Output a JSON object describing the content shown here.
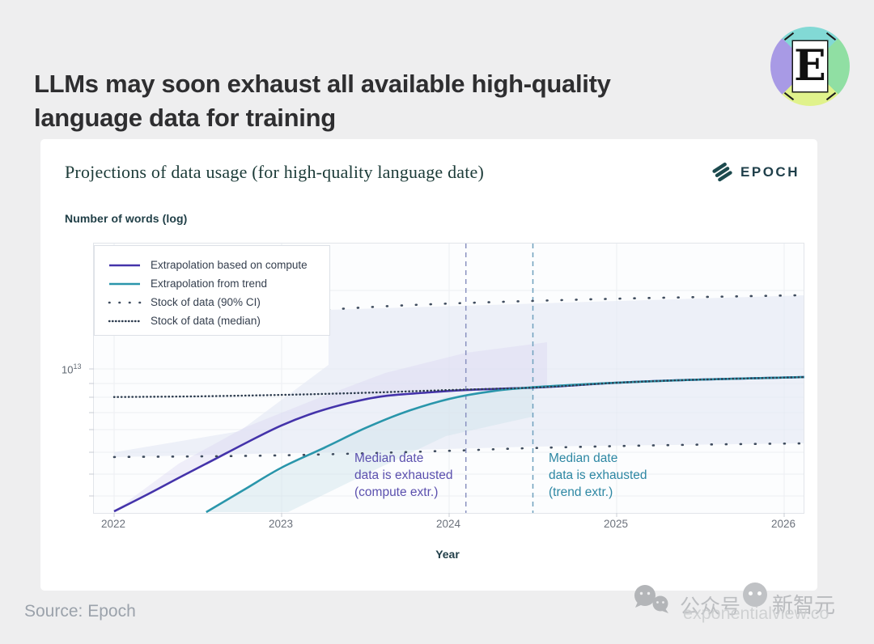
{
  "header": {
    "title_line1": "LLMs may soon exhaust all available high-quality",
    "title_line2": "language data for training",
    "logo_letter": "E"
  },
  "card": {
    "title": "Projections of data usage (for high-quality language date)",
    "brand": "EPOCH",
    "ylabel": "Number of words (log)",
    "xlabel": "Year",
    "ytick_base": "10",
    "ytick_exp": "13"
  },
  "legend": {
    "items": [
      {
        "label": "Extrapolation based on compute",
        "style": "solid",
        "color": "#4433aa"
      },
      {
        "label": "Extrapolation from trend",
        "style": "solid",
        "color": "#2a96ab"
      },
      {
        "label": "Stock of data (90% CI)",
        "style": "dot-sparse",
        "color": "#3f4c5e"
      },
      {
        "label": "Stock of data (median)",
        "style": "dot-dense",
        "color": "#2e3d4f"
      }
    ]
  },
  "annotations": {
    "compute": {
      "line1": "Median date",
      "line2": "data is exhausted",
      "line3": "(compute extr.)"
    },
    "trend": {
      "line1": "Median date",
      "line2": "data is exhausted",
      "line3": "(trend extr.)"
    }
  },
  "footer": {
    "source": "Source: Epoch",
    "watermark_wechat_label": "公众号",
    "watermark_brand": "新智元",
    "watermark_url": "exponentialview.co"
  },
  "chart_data": {
    "type": "line",
    "title": "Projections of data usage (for high-quality language date)",
    "xlabel": "Year",
    "ylabel": "Number of words (log)",
    "y_scale": "log",
    "x_ticks": [
      2022,
      2023,
      2024,
      2025,
      2026
    ],
    "y_tick_labels": [
      "10^13"
    ],
    "xlim": [
      2021.88,
      2026.12
    ],
    "ylim": [
      2600000000000.0,
      30000000000000.0
    ],
    "grid": true,
    "legend_position": "top-left",
    "series": [
      {
        "name": "Extrapolation based on compute",
        "color": "#4433aa",
        "dash": "solid",
        "width": 2.6,
        "points": [
          [
            2022,
            2840000000000.0
          ],
          [
            2022.2,
            3300000000000.0
          ],
          [
            2022.4,
            3860000000000.0
          ],
          [
            2022.6,
            4500000000000.0
          ],
          [
            2022.8,
            5250000000000.0
          ],
          [
            2023.0,
            6070000000000.0
          ],
          [
            2023.2,
            6800000000000.0
          ],
          [
            2023.4,
            7400000000000.0
          ],
          [
            2023.6,
            7850000000000.0
          ],
          [
            2023.85,
            8100000000000.0
          ],
          [
            2024.1,
            8300000000000.0
          ],
          [
            2024.55,
            8500000000000.0
          ],
          [
            2025,
            8850000000000.0
          ],
          [
            2025.5,
            9100000000000.0
          ],
          [
            2026.12,
            9300000000000.0
          ]
        ]
      },
      {
        "name": "Extrapolation from trend",
        "color": "#2a96ab",
        "dash": "solid",
        "width": 2.6,
        "points": [
          [
            2022.55,
            2820000000000.0
          ],
          [
            2022.77,
            3420000000000.0
          ],
          [
            2023.0,
            4180000000000.0
          ],
          [
            2023.26,
            5000000000000.0
          ],
          [
            2023.5,
            5930000000000.0
          ],
          [
            2023.74,
            6840000000000.0
          ],
          [
            2024.0,
            7670000000000.0
          ],
          [
            2024.25,
            8200000000000.0
          ],
          [
            2024.5,
            8500000000000.0
          ],
          [
            2025,
            8850000000000.0
          ],
          [
            2025.5,
            9100000000000.0
          ],
          [
            2026.12,
            9300000000000.0
          ]
        ]
      },
      {
        "name": "Stock of data (median)",
        "color": "#2e3d4f",
        "dash": "dot-dense",
        "width": 2.4,
        "points": [
          [
            2022,
            7800000000000.0
          ],
          [
            2022.5,
            7850000000000.0
          ],
          [
            2023,
            7950000000000.0
          ],
          [
            2023.5,
            8100000000000.0
          ],
          [
            2024,
            8300000000000.0
          ],
          [
            2024.55,
            8500000000000.0
          ],
          [
            2025,
            8850000000000.0
          ],
          [
            2025.5,
            9100000000000.0
          ],
          [
            2026.12,
            9300000000000.0
          ]
        ]
      },
      {
        "name": "Stock of data (90% CI) upper",
        "color": "#3f4c5e",
        "dash": "dot-sparse",
        "width": 2.6,
        "points": [
          [
            2023.28,
            16900000000000.0
          ],
          [
            2023.7,
            17500000000000.0
          ],
          [
            2024.2,
            18000000000000.0
          ],
          [
            2025,
            18600000000000.0
          ],
          [
            2026.12,
            19200000000000.0
          ]
        ]
      },
      {
        "name": "Stock of data (90% CI) lower",
        "color": "#3f4c5e",
        "dash": "dot-sparse",
        "width": 2.6,
        "points": [
          [
            2022,
            4590000000000.0
          ],
          [
            2023,
            4660000000000.0
          ],
          [
            2024,
            4850000000000.0
          ],
          [
            2024.5,
            4970000000000.0
          ],
          [
            2025.3,
            5100000000000.0
          ],
          [
            2026.12,
            5180000000000.0
          ]
        ]
      }
    ],
    "events": [
      {
        "label": "Median date data is exhausted (compute extr.)",
        "x": 2024.1,
        "line_color": "#8a92c0"
      },
      {
        "label": "Median date data is exhausted (trend extr.)",
        "x": 2024.5,
        "line_color": "#6fa0bd"
      }
    ]
  }
}
